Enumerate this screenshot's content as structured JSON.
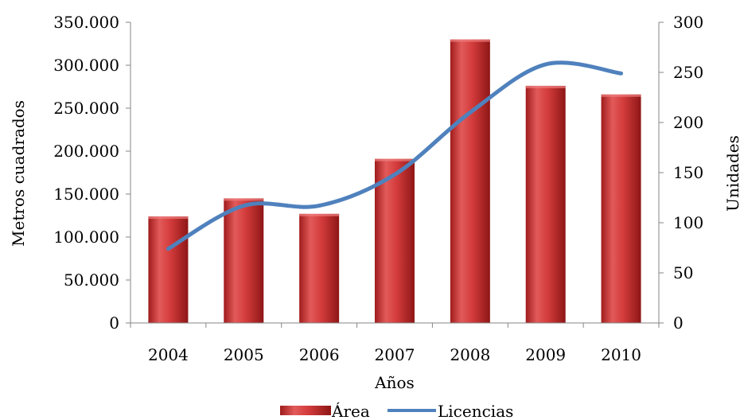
{
  "chart_data": {
    "type": "bar",
    "categories": [
      "2004",
      "2005",
      "2006",
      "2007",
      "2008",
      "2009",
      "2010"
    ],
    "series": [
      {
        "name": "Área",
        "type": "bar",
        "axis": "left",
        "values": [
          124000,
          145000,
          127000,
          191000,
          330000,
          276000,
          266000
        ],
        "color": "#d03a3a"
      },
      {
        "name": "Licencias",
        "type": "line",
        "smooth": true,
        "axis": "right",
        "values": [
          74,
          117,
          117,
          148,
          210,
          258,
          249
        ],
        "color": "#4f81bd"
      }
    ],
    "xlabel": "Años",
    "ylabel": "Metros cuadrados",
    "ylabel_right": "Unidades",
    "ylim": [
      0,
      350000
    ],
    "ylim_right": [
      0,
      300
    ],
    "y_ticks": [
      "0",
      "50.000",
      "100.000",
      "150.000",
      "200.000",
      "250.000",
      "300.000",
      "350.000"
    ],
    "y_tick_values": [
      0,
      50000,
      100000,
      150000,
      200000,
      250000,
      300000,
      350000
    ],
    "y_right_ticks": [
      "0",
      "50",
      "100",
      "150",
      "200",
      "250",
      "300"
    ],
    "y_right_tick_values": [
      0,
      50,
      100,
      150,
      200,
      250,
      300
    ],
    "grid": false,
    "legend_position": "bottom"
  }
}
